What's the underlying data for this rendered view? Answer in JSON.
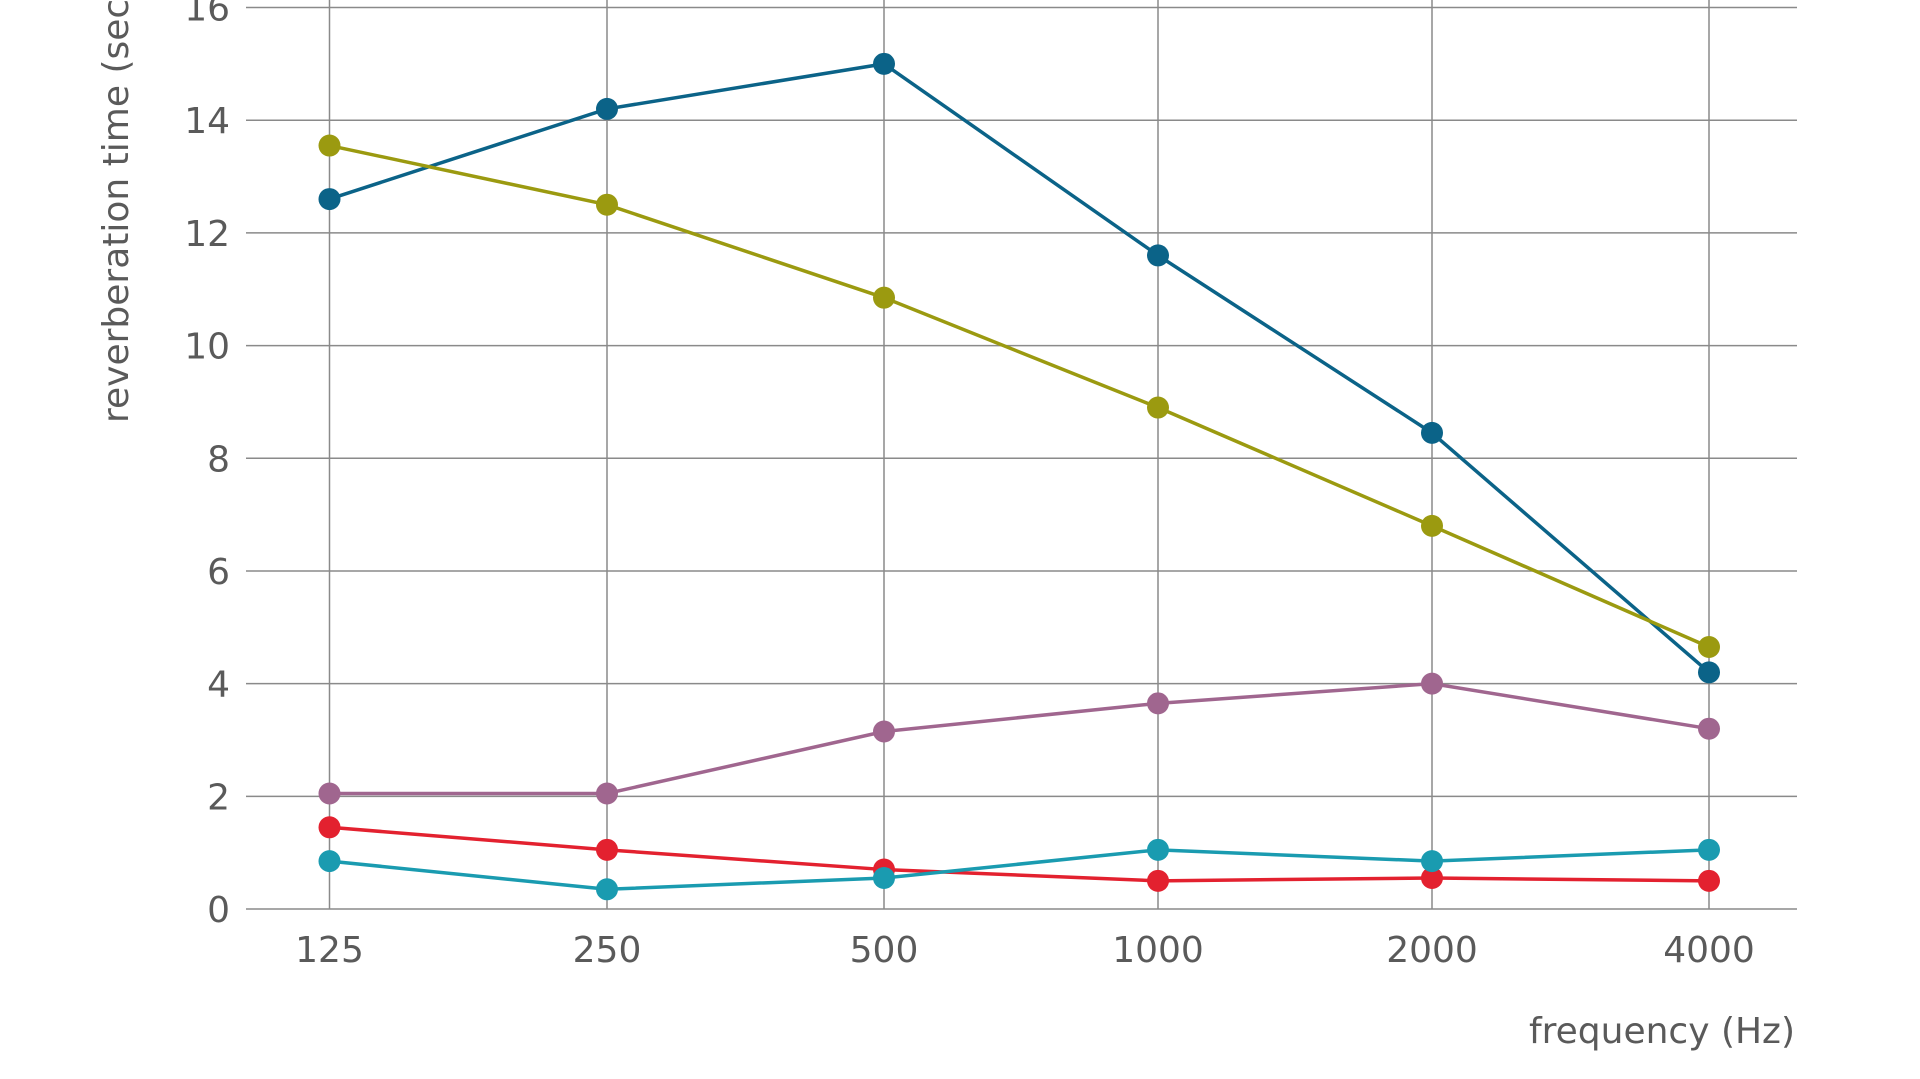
{
  "chart_data": {
    "type": "line",
    "x_label": "frequency (Hz)",
    "y_label": "reverberation time (sec.",
    "categories": [
      "125",
      "250",
      "500",
      "1000",
      "2000",
      "4000"
    ],
    "series": [
      {
        "color": "#0b6388",
        "values": [
          12.6,
          14.2,
          15.0,
          11.6,
          8.45,
          4.2
        ]
      },
      {
        "color": "#9b9a10",
        "values": [
          13.55,
          12.5,
          10.85,
          8.9,
          6.8,
          4.65
        ]
      },
      {
        "color": "#a0668f",
        "values": [
          2.05,
          2.05,
          3.15,
          3.65,
          4.0,
          3.2
        ]
      },
      {
        "color": "#e3212f",
        "values": [
          1.45,
          1.05,
          0.7,
          0.5,
          0.55,
          0.5
        ]
      },
      {
        "color": "#1a9bb0",
        "values": [
          0.85,
          0.35,
          0.55,
          1.05,
          0.85,
          1.05
        ]
      }
    ],
    "ylim": [
      0,
      16
    ],
    "yticks": [
      0,
      2,
      4,
      6,
      8,
      10,
      12,
      14,
      16
    ],
    "grid": true
  }
}
